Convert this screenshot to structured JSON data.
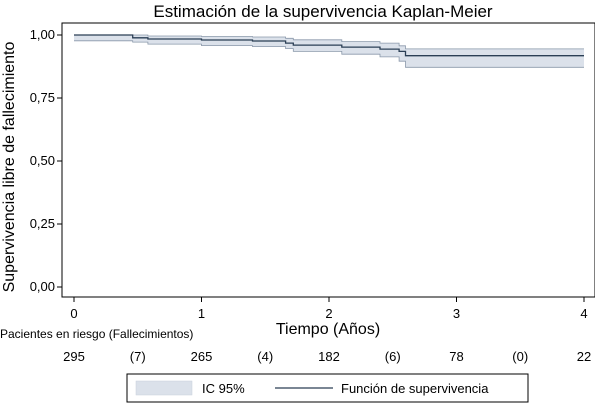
{
  "chart_data": {
    "type": "line",
    "title": "Estimación de la supervivencia Kaplan-Meier",
    "xlabel": "Tiempo (Años)",
    "ylabel": "Supervivencia libre de fallecimiento",
    "xlim": [
      -0.1,
      4.05
    ],
    "ylim": [
      0,
      1
    ],
    "xticks": [
      {
        "value": 0,
        "label": "0"
      },
      {
        "value": 1,
        "label": "1"
      },
      {
        "value": 2,
        "label": "2"
      },
      {
        "value": 3,
        "label": "3"
      },
      {
        "value": 4,
        "label": "4"
      }
    ],
    "yticks": [
      {
        "value": 0.0,
        "label": "0,00"
      },
      {
        "value": 0.25,
        "label": "0,25"
      },
      {
        "value": 0.5,
        "label": "0,50"
      },
      {
        "value": 0.75,
        "label": "0,75"
      },
      {
        "value": 1.0,
        "label": "1,00"
      }
    ],
    "grid": false,
    "series": [
      {
        "name": "Función de supervivencia",
        "color": "#2b3f55",
        "x": [
          0,
          0.46,
          0.46,
          0.58,
          0.58,
          1.0,
          1.0,
          1.4,
          1.4,
          1.66,
          1.66,
          1.72,
          1.72,
          2.1,
          2.1,
          2.4,
          2.4,
          2.55,
          2.55,
          2.6,
          2.6,
          4.0
        ],
        "y": [
          1.0,
          1.0,
          0.989,
          0.989,
          0.984,
          0.984,
          0.98,
          0.98,
          0.976,
          0.976,
          0.968,
          0.968,
          0.96,
          0.96,
          0.952,
          0.952,
          0.944,
          0.944,
          0.935,
          0.935,
          0.918,
          0.918
        ]
      }
    ],
    "ci": {
      "name": "IC 95%",
      "color": "#dbe1ea",
      "stroke": "#8a98aa",
      "x": [
        0,
        0.46,
        0.46,
        0.58,
        0.58,
        1.0,
        1.0,
        1.4,
        1.4,
        1.66,
        1.66,
        1.72,
        1.72,
        2.1,
        2.1,
        2.4,
        2.4,
        2.55,
        2.55,
        2.6,
        2.6,
        4.0
      ],
      "lower": [
        0.977,
        0.977,
        0.972,
        0.972,
        0.964,
        0.964,
        0.958,
        0.958,
        0.954,
        0.954,
        0.946,
        0.946,
        0.935,
        0.935,
        0.924,
        0.924,
        0.913,
        0.913,
        0.896,
        0.896,
        0.872,
        0.872
      ],
      "upper": [
        1.0,
        1.0,
        1.0,
        1.0,
        0.996,
        0.996,
        0.994,
        0.994,
        0.992,
        0.992,
        0.987,
        0.987,
        0.981,
        0.981,
        0.974,
        0.974,
        0.968,
        0.968,
        0.957,
        0.957,
        0.945,
        0.945
      ]
    },
    "risk_table": {
      "header": "Pacientes en riesgo (Fallecimientos)",
      "entries": [
        {
          "x": 0,
          "label": "295"
        },
        {
          "x": 0.5,
          "label": "(7)"
        },
        {
          "x": 1,
          "label": "265"
        },
        {
          "x": 1.5,
          "label": "(4)"
        },
        {
          "x": 2,
          "label": "182"
        },
        {
          "x": 2.5,
          "label": "(6)"
        },
        {
          "x": 3,
          "label": "78"
        },
        {
          "x": 3.5,
          "label": "(0)"
        },
        {
          "x": 4,
          "label": "22"
        }
      ]
    },
    "legend": {
      "placement": "bottom",
      "items": [
        {
          "kind": "band",
          "label": "IC 95%"
        },
        {
          "kind": "line",
          "label": "Función de supervivencia"
        }
      ]
    }
  }
}
